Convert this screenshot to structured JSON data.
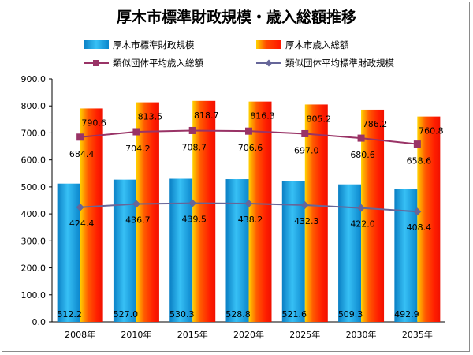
{
  "chart_data": {
    "type": "bar",
    "title": "厚木市標準財政規模・歳入総額推移",
    "categories": [
      "2008年",
      "2010年",
      "2015年",
      "2020年",
      "2025年",
      "2030年",
      "2035年"
    ],
    "ylim": [
      0,
      900
    ],
    "yticks": [
      "0.0",
      "100.0",
      "200.0",
      "300.0",
      "400.0",
      "500.0",
      "600.0",
      "700.0",
      "800.0",
      "900.0"
    ],
    "grid": false,
    "legend_position": "top",
    "series": [
      {
        "name": "厚木市標準財政規模",
        "kind": "bar",
        "color": "#1a9ee0",
        "values": [
          512.2,
          527.0,
          530.3,
          528.8,
          521.6,
          509.3,
          492.9
        ],
        "labels": [
          "512.2",
          "527.0",
          "530.3",
          "528.8",
          "521.6",
          "509.3",
          "492.9"
        ]
      },
      {
        "name": "厚木市歳入総額",
        "kind": "bar",
        "color": "#ff3000",
        "values": [
          790.6,
          813.5,
          818.7,
          816.3,
          805.2,
          786.2,
          760.8
        ],
        "labels": [
          "790.6",
          "813.5",
          "818.7",
          "816.3",
          "805.2",
          "786.2",
          "760.8"
        ]
      },
      {
        "name": "類似団体平均歳入総額",
        "kind": "line",
        "color": "#993366",
        "marker": "square",
        "values": [
          684.4,
          704.2,
          708.7,
          706.6,
          697.0,
          680.6,
          658.6
        ],
        "labels": [
          "684.4",
          "704.2",
          "708.7",
          "706.6",
          "697.0",
          "680.6",
          "658.6"
        ]
      },
      {
        "name": "類似団体平均標準財政規模",
        "kind": "line",
        "color": "#666699",
        "marker": "diamond",
        "values": [
          424.4,
          436.7,
          439.5,
          438.2,
          432.3,
          422.0,
          408.4
        ],
        "labels": [
          "424.4",
          "436.7",
          "439.5",
          "438.2",
          "432.3",
          "422.0",
          "408.4"
        ]
      }
    ]
  }
}
